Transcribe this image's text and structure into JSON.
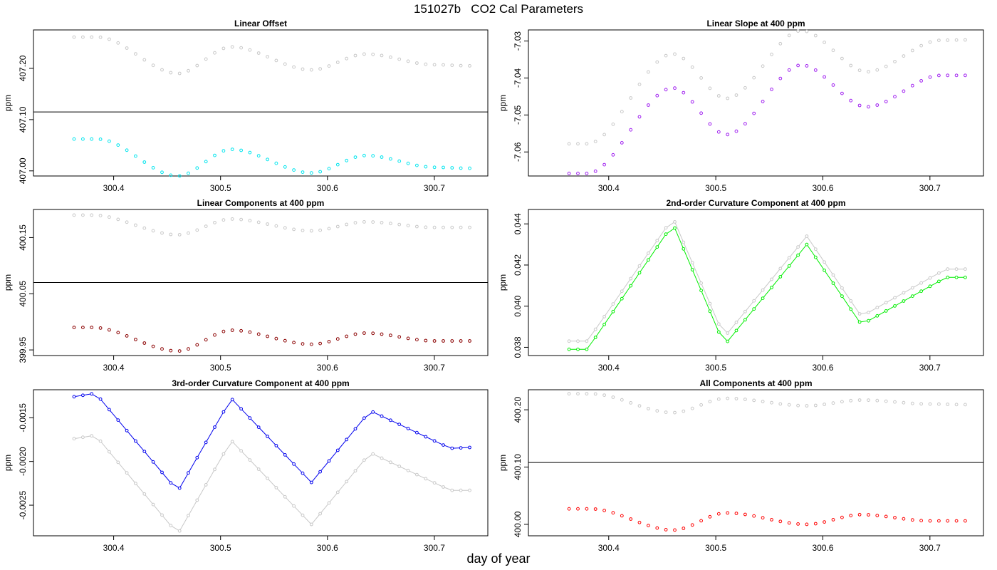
{
  "figure": {
    "title": "151027b   CO2 Cal Parameters",
    "xlabel": "day of year"
  },
  "colors": {
    "reference": "#c8c8c8",
    "hline": "#000000"
  },
  "chart_data": [
    {
      "type": "scatter",
      "title": "Linear Offset",
      "ylabel": "ppm",
      "xticks": [
        "300.4",
        "300.5",
        "300.6",
        "300.7"
      ],
      "yticks": [
        "407.00",
        "407.10",
        "407.20"
      ],
      "xlim": [
        300.325,
        300.75
      ],
      "ylim": [
        406.99,
        407.275
      ],
      "hline": 407.115,
      "connect": false,
      "series": [
        {
          "role": "reference",
          "color": "#c8c8c8",
          "anchors": [
            [
              300.363,
              407.261
            ],
            [
              300.385,
              407.261
            ],
            [
              300.46,
              407.19
            ],
            [
              300.51,
              407.242
            ],
            [
              300.585,
              407.197
            ],
            [
              300.636,
              407.228
            ],
            [
              300.7,
              407.207
            ],
            [
              300.733,
              407.205
            ]
          ]
        },
        {
          "role": "main",
          "color": "#00e5ee",
          "anchors": [
            [
              300.363,
              407.062
            ],
            [
              300.385,
              407.062
            ],
            [
              300.46,
              406.99
            ],
            [
              300.51,
              407.042
            ],
            [
              300.585,
              406.996
            ],
            [
              300.636,
              407.03
            ],
            [
              300.7,
              407.007
            ],
            [
              300.733,
              407.005
            ]
          ]
        }
      ]
    },
    {
      "type": "scatter",
      "title": "Linear Slope at 400 ppm",
      "ylabel": "ppm",
      "xticks": [
        "300.4",
        "300.5",
        "300.6",
        "300.7"
      ],
      "yticks": [
        "-7.06",
        "-7.05",
        "-7.04",
        "-7.03"
      ],
      "xlim": [
        300.325,
        300.75
      ],
      "ylim": [
        -7.0665,
        -7.027
      ],
      "hline": null,
      "connect": false,
      "series": [
        {
          "role": "reference",
          "color": "#c8c8c8",
          "anchors": [
            [
              300.363,
              -7.0578
            ],
            [
              300.38,
              -7.0578
            ],
            [
              300.46,
              -7.0335
            ],
            [
              300.51,
              -7.0455
            ],
            [
              300.58,
              -7.0272
            ],
            [
              300.641,
              -7.0383
            ],
            [
              300.71,
              -7.0298
            ],
            [
              300.733,
              -7.0297
            ]
          ]
        },
        {
          "role": "main",
          "color": "#a020f0",
          "anchors": [
            [
              300.363,
              -7.0658
            ],
            [
              300.38,
              -7.0658
            ],
            [
              300.46,
              -7.0427
            ],
            [
              300.51,
              -7.0553
            ],
            [
              300.58,
              -7.0365
            ],
            [
              300.641,
              -7.0478
            ],
            [
              300.71,
              -7.0393
            ],
            [
              300.733,
              -7.0393
            ]
          ]
        }
      ]
    },
    {
      "type": "scatter",
      "title": "Linear Components at 400 ppm",
      "ylabel": "ppm",
      "xticks": [
        "300.4",
        "300.5",
        "300.6",
        "300.7"
      ],
      "yticks": [
        "399.95",
        "400.05",
        "400.15"
      ],
      "xlim": [
        300.325,
        300.75
      ],
      "ylim": [
        399.94,
        400.2
      ],
      "hline": 400.07,
      "connect": false,
      "series": [
        {
          "role": "reference",
          "color": "#c8c8c8",
          "anchors": [
            [
              300.363,
              400.19
            ],
            [
              300.38,
              400.19
            ],
            [
              300.46,
              400.155
            ],
            [
              300.51,
              400.183
            ],
            [
              300.585,
              400.162
            ],
            [
              300.636,
              400.178
            ],
            [
              300.7,
              400.168
            ],
            [
              300.733,
              400.168
            ]
          ]
        },
        {
          "role": "main",
          "color": "#8b0000",
          "anchors": [
            [
              300.363,
              399.99
            ],
            [
              300.38,
              399.99
            ],
            [
              300.46,
              399.948
            ],
            [
              300.51,
              399.985
            ],
            [
              300.585,
              399.96
            ],
            [
              300.636,
              399.98
            ],
            [
              300.7,
              399.966
            ],
            [
              300.733,
              399.966
            ]
          ]
        }
      ]
    },
    {
      "type": "line",
      "title": "2nd-order Curvature Component at 400 ppm",
      "ylabel": "ppm",
      "xticks": [
        "300.4",
        "300.5",
        "300.6",
        "300.7"
      ],
      "yticks": [
        "0.038",
        "0.040",
        "0.042",
        "0.044"
      ],
      "xlim": [
        300.325,
        300.75
      ],
      "ylim": [
        0.0376,
        0.0447
      ],
      "hline": null,
      "connect": true,
      "series": [
        {
          "role": "reference",
          "color": "#c8c8c8",
          "anchors": [
            [
              300.363,
              0.0383
            ],
            [
              300.38,
              0.0383
            ],
            [
              300.46,
              0.0443
            ],
            [
              300.508,
              0.0385
            ],
            [
              300.585,
              0.0434
            ],
            [
              300.636,
              0.0395
            ],
            [
              300.715,
              0.0418
            ],
            [
              300.733,
              0.0418
            ]
          ]
        },
        {
          "role": "main",
          "color": "#00ee00",
          "anchors": [
            [
              300.363,
              0.0379
            ],
            [
              300.38,
              0.0379
            ],
            [
              300.46,
              0.044
            ],
            [
              300.508,
              0.0381
            ],
            [
              300.585,
              0.043
            ],
            [
              300.636,
              0.0391
            ],
            [
              300.715,
              0.0414
            ],
            [
              300.733,
              0.0414
            ]
          ]
        }
      ]
    },
    {
      "type": "line",
      "title": "3rd-order Curvature Component at 400 ppm",
      "ylabel": "ppm",
      "xticks": [
        "300.4",
        "300.5",
        "300.6",
        "300.7"
      ],
      "yticks": [
        "-0.0025",
        "-0.0020",
        "-0.0015"
      ],
      "xlim": [
        300.325,
        300.75
      ],
      "ylim": [
        -0.00285,
        -0.00118
      ],
      "hline": null,
      "connect": true,
      "series": [
        {
          "role": "reference",
          "color": "#c8c8c8",
          "anchors": [
            [
              300.363,
              -0.00174
            ],
            [
              300.383,
              -0.0017
            ],
            [
              300.46,
              -0.00283
            ],
            [
              300.51,
              -0.00176
            ],
            [
              300.585,
              -0.00272
            ],
            [
              300.64,
              -0.0019
            ],
            [
              300.715,
              -0.00233
            ],
            [
              300.733,
              -0.00233
            ]
          ]
        },
        {
          "role": "main",
          "color": "#0000ee",
          "anchors": [
            [
              300.363,
              -0.00126
            ],
            [
              300.383,
              -0.00122
            ],
            [
              300.46,
              -0.00234
            ],
            [
              300.51,
              -0.00128
            ],
            [
              300.585,
              -0.00224
            ],
            [
              300.64,
              -0.00142
            ],
            [
              300.715,
              -0.00185
            ],
            [
              300.733,
              -0.00184
            ]
          ]
        }
      ]
    },
    {
      "type": "scatter",
      "title": "All Components at 400 ppm",
      "ylabel": "ppm",
      "xticks": [
        "300.4",
        "300.5",
        "300.6",
        "300.7"
      ],
      "yticks": [
        "400.00",
        "400.10",
        "400.20"
      ],
      "xlim": [
        300.325,
        300.75
      ],
      "ylim": [
        399.98,
        400.235
      ],
      "hline": 400.108,
      "connect": false,
      "series": [
        {
          "role": "reference",
          "color": "#c8c8c8",
          "anchors": [
            [
              300.363,
              400.228
            ],
            [
              300.383,
              400.228
            ],
            [
              300.46,
              400.195
            ],
            [
              300.51,
              400.22
            ],
            [
              300.585,
              400.207
            ],
            [
              300.636,
              400.217
            ],
            [
              300.7,
              400.21
            ],
            [
              300.733,
              400.209
            ]
          ]
        },
        {
          "role": "main",
          "color": "#ff0000",
          "anchors": [
            [
              300.363,
              400.027
            ],
            [
              300.383,
              400.027
            ],
            [
              300.46,
              399.99
            ],
            [
              300.51,
              400.02
            ],
            [
              300.585,
              400.0
            ],
            [
              300.636,
              400.017
            ],
            [
              300.7,
              400.006
            ],
            [
              300.733,
              400.006
            ]
          ]
        }
      ]
    }
  ]
}
